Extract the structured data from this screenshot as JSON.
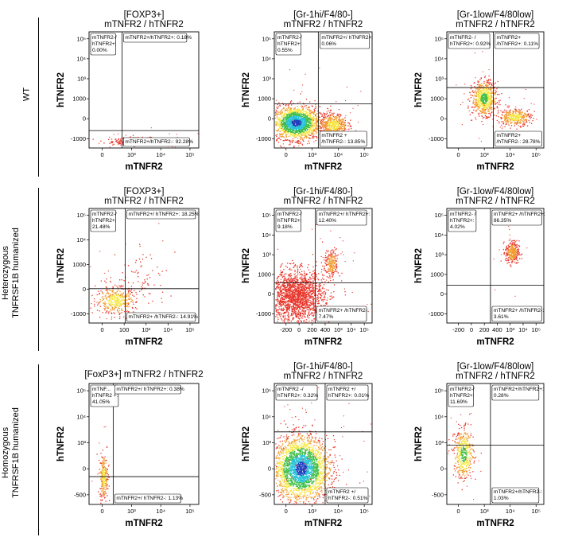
{
  "figure": {
    "row_labels": [
      {
        "lines": [
          "WT"
        ]
      },
      {
        "lines": [
          "Heterozygous",
          "TNFRSF1B humanized"
        ]
      },
      {
        "lines": [
          "Homozygous",
          "TNFRSF1B humanized"
        ]
      }
    ]
  },
  "colors": {
    "frame": "#000000",
    "gate": "#000000",
    "dot_red": "#e8352a",
    "dot_orange": "#f29a2e",
    "dot_yellow": "#f5e642",
    "dot_green": "#3fbf4a",
    "dot_cyan": "#27c3d8",
    "dot_blue": "#1f3fbf"
  },
  "chart_data": [
    {
      "type": "scatter",
      "row": 0,
      "col": 0,
      "title_lines": [
        "[FOXP3+]",
        "mTNFR2 / hTNFR2"
      ],
      "xlabel": "mTNFR2",
      "ylabel": "hTNFR2",
      "xticks": [
        "0",
        "10³",
        "10⁴",
        "10⁵"
      ],
      "yticks": [
        "10⁵",
        "10⁴",
        "10³",
        "1000",
        "0",
        "-1000"
      ],
      "quadrants": {
        "top_left": "mTNFR2-/ hTNFR2+: 0.00%",
        "top_right": "mTNFR2+/hTNFR2+: 0.18%",
        "bottom_left": "",
        "bottom_right": "mTNFR2+/hTNFR2-: 92.28%"
      },
      "gate": {
        "x": 0.3,
        "y": 0.15
      },
      "populations": [
        {
          "cx": 0.45,
          "cy": 0.06,
          "sx": 0.12,
          "sy": 0.016,
          "n": 420,
          "core": "red"
        }
      ]
    },
    {
      "type": "scatter",
      "row": 0,
      "col": 1,
      "title_lines": [
        "[Gr-1hi/F4/80-]",
        "mTNFR2 / hTNFR2"
      ],
      "xlabel": "mTNFR2",
      "ylabel": "hTNFR2",
      "xticks": [
        "0",
        "10³",
        "10⁴",
        "10⁵"
      ],
      "yticks": [
        "10⁵",
        "10⁴",
        "10³",
        "1000",
        "0",
        "-1000"
      ],
      "quadrants": {
        "top_left": "mTNFR2-/ hTNFR2+: 0.55%",
        "top_right": "mTNFR2+/ hTNFR2+: 0.06%",
        "bottom_left": "",
        "bottom_right": "mTNFR2 + /hTNFR2-: 13.85%"
      },
      "gate": {
        "x": 0.45,
        "y": 0.38
      },
      "populations": [
        {
          "cx": 0.22,
          "cy": 0.22,
          "sx": 0.12,
          "sy": 0.07,
          "n": 1900,
          "core": "blue"
        },
        {
          "cx": 0.6,
          "cy": 0.2,
          "sx": 0.07,
          "sy": 0.05,
          "n": 500,
          "core": "yellow"
        }
      ]
    },
    {
      "type": "scatter",
      "row": 0,
      "col": 2,
      "title_lines": [
        "[Gr-1low/F4/80low]",
        "mTNFR2 / hTNFR2"
      ],
      "xlabel": "mTNFR2",
      "ylabel": "hTNFR2",
      "xticks": [
        "0",
        "10³",
        "10⁴",
        "10⁵"
      ],
      "yticks": [
        "10⁵",
        "10⁴",
        "10³",
        "1000",
        "0",
        "-1000"
      ],
      "quadrants": {
        "top_left": "mTNFR2- / hTNFR2+: 0.92%",
        "top_right": "mTNFR2+ /hTNFR2+: 0.11%",
        "bottom_left": "",
        "bottom_right": "mTNFR2+ /hTNFR2-: 28.78%"
      },
      "gate": {
        "x": 0.48,
        "y": 0.52
      },
      "populations": [
        {
          "cx": 0.38,
          "cy": 0.43,
          "sx": 0.06,
          "sy": 0.07,
          "n": 700,
          "core": "green"
        },
        {
          "cx": 0.7,
          "cy": 0.27,
          "sx": 0.08,
          "sy": 0.035,
          "n": 350,
          "core": "yellow"
        }
      ]
    },
    {
      "type": "scatter",
      "row": 1,
      "col": 0,
      "title_lines": [
        "[FOXP3+]",
        "mTNFR2 / hTNFR2"
      ],
      "xlabel": "mTNFR2",
      "ylabel": "hTNFR2",
      "xticks": [
        "0",
        "100",
        "10³",
        "10⁴",
        "10⁵"
      ],
      "yticks": [
        "10⁵",
        "10⁴",
        "1000",
        "0",
        "-1000"
      ],
      "quadrants": {
        "top_left": "mTNFR2-/ hTNFR2+: 21.48%",
        "top_right": "mTNFR2+/ hTNFR2+: 18.25%",
        "bottom_left": "",
        "bottom_right": "mTNFR2+ /hTNFR2-: 14.91%"
      },
      "gate": {
        "x": 0.33,
        "y": 0.3
      },
      "populations": [
        {
          "cx": 0.24,
          "cy": 0.2,
          "sx": 0.09,
          "sy": 0.06,
          "n": 400,
          "core": "yellow"
        },
        {
          "cx": 0.48,
          "cy": 0.38,
          "sx": 0.12,
          "sy": 0.14,
          "n": 80,
          "core": "red"
        }
      ]
    },
    {
      "type": "scatter",
      "row": 1,
      "col": 1,
      "title_lines": [
        "[Gr-1hi/F4/80-]",
        "mTNFR2 / hTNFR2"
      ],
      "xlabel": "mTNFR2",
      "ylabel": "hTNFR2",
      "xticks": [
        "-200",
        "0",
        "200",
        "400",
        "10³",
        "10⁴",
        "10⁵"
      ],
      "yticks": [
        "10⁵",
        "10⁴",
        "10³",
        "1000",
        "0",
        "-1000"
      ],
      "quadrants": {
        "top_left": "mTNFR2-/ hTNFR2+: 9.18%",
        "top_right": "mTNFR2+/ hTNFR2+: 12.40%",
        "bottom_left": "",
        "bottom_right": "mTNFR2+ /hTNFR2-: 7.47%"
      },
      "gate": {
        "x": 0.42,
        "y": 0.35
      },
      "populations": [
        {
          "cx": 0.22,
          "cy": 0.24,
          "sx": 0.14,
          "sy": 0.11,
          "n": 1800,
          "core": "red"
        },
        {
          "cx": 0.58,
          "cy": 0.52,
          "sx": 0.035,
          "sy": 0.06,
          "n": 220,
          "core": "orange"
        }
      ]
    },
    {
      "type": "scatter",
      "row": 1,
      "col": 2,
      "title_lines": [
        "[Gr-1low/F4/80low]",
        "mTNFR2 / hTNFR2"
      ],
      "xlabel": "mTNFR2",
      "ylabel": "hTNFR2",
      "xticks": [
        "-200",
        "0",
        "200",
        "400",
        "10³",
        "10⁴",
        "10⁵"
      ],
      "yticks": [
        "10⁵",
        "10⁴",
        "10³",
        "1000",
        "0",
        "-1000"
      ],
      "quadrants": {
        "top_left": "mTNFR2- / hTNFR2+: 4.02%",
        "top_right": "mTNFR2+ /hTNFR2+: 86.35%",
        "bottom_left": "",
        "bottom_right": "mTNFR2+ /hTNFR2-: 3.61%"
      },
      "gate": {
        "x": 0.45,
        "y": 0.33
      },
      "populations": [
        {
          "cx": 0.67,
          "cy": 0.62,
          "sx": 0.035,
          "sy": 0.05,
          "n": 300,
          "core": "orange"
        }
      ]
    },
    {
      "type": "scatter",
      "row": 2,
      "col": 0,
      "title_lines": [
        "[FoxP3+] mTNFR2 / hTNFR2"
      ],
      "xlabel": "mTNFR2",
      "ylabel": "hTNFR2",
      "xticks": [
        "0",
        "10³",
        "10⁴",
        "10⁵"
      ],
      "yticks": [
        "10⁵",
        "10⁴",
        "10³",
        "0",
        "-500"
      ],
      "quadrants": {
        "top_left": "mTNF... hTNFR2 +: 41.05%",
        "top_right": "mTNFR2+/ hTNFR2+: 0.38%",
        "bottom_left": "",
        "bottom_right": "mTNFR2+/ hTNFR2-: 1.13%"
      },
      "gate": {
        "x": 0.22,
        "y": 0.23
      },
      "populations": [
        {
          "cx": 0.13,
          "cy": 0.23,
          "sx": 0.018,
          "sy": 0.09,
          "n": 260,
          "core": "yellow"
        }
      ]
    },
    {
      "type": "scatter",
      "row": 2,
      "col": 1,
      "title_lines": [
        "[Gr-1hi/F4/80-]",
        "mTNFR2 / hTNFR2"
      ],
      "xlabel": "mTNFR2",
      "ylabel": "hTNFR2",
      "xticks": [
        "0",
        "10³",
        "10⁴",
        "10⁵"
      ],
      "yticks": [
        "10⁵",
        "10⁴",
        "10³",
        "0",
        "-500"
      ],
      "quadrants": {
        "top_left": "mTNFR2 -/ hTNFR2+: 0.32%",
        "top_right": "mTNFR2 +/ hTNFR2+: 0.01%",
        "bottom_left": "",
        "bottom_right": "mTNFR2 +/ hTNFR2-: 0.51%"
      },
      "gate": {
        "x": 0.52,
        "y": 0.6
      },
      "populations": [
        {
          "cx": 0.27,
          "cy": 0.3,
          "sx": 0.14,
          "sy": 0.13,
          "n": 2600,
          "core": "blue"
        }
      ]
    },
    {
      "type": "scatter",
      "row": 2,
      "col": 2,
      "title_lines": [
        "[Gr-1low/F4/80low]",
        "mTNFR2 / hTNFR2"
      ],
      "xlabel": "mTNFR2",
      "ylabel": "hTNFR2",
      "xticks": [
        "0",
        "10³",
        "10⁴",
        "10⁵"
      ],
      "yticks": [
        "10⁵",
        "10⁴",
        "10³",
        "0",
        "-500"
      ],
      "quadrants": {
        "top_left": "mTNFR2-/ hTNFR2+: 11.69%",
        "top_right": "mTNFR2+/hTNFR2+: 0.28%",
        "bottom_left": "",
        "bottom_right": "mTNFR2+/hTNFR2-: 1.03%"
      },
      "gate": {
        "x": 0.45,
        "y": 0.49
      },
      "populations": [
        {
          "cx": 0.17,
          "cy": 0.42,
          "sx": 0.05,
          "sy": 0.1,
          "n": 450,
          "core": "green"
        }
      ]
    }
  ]
}
